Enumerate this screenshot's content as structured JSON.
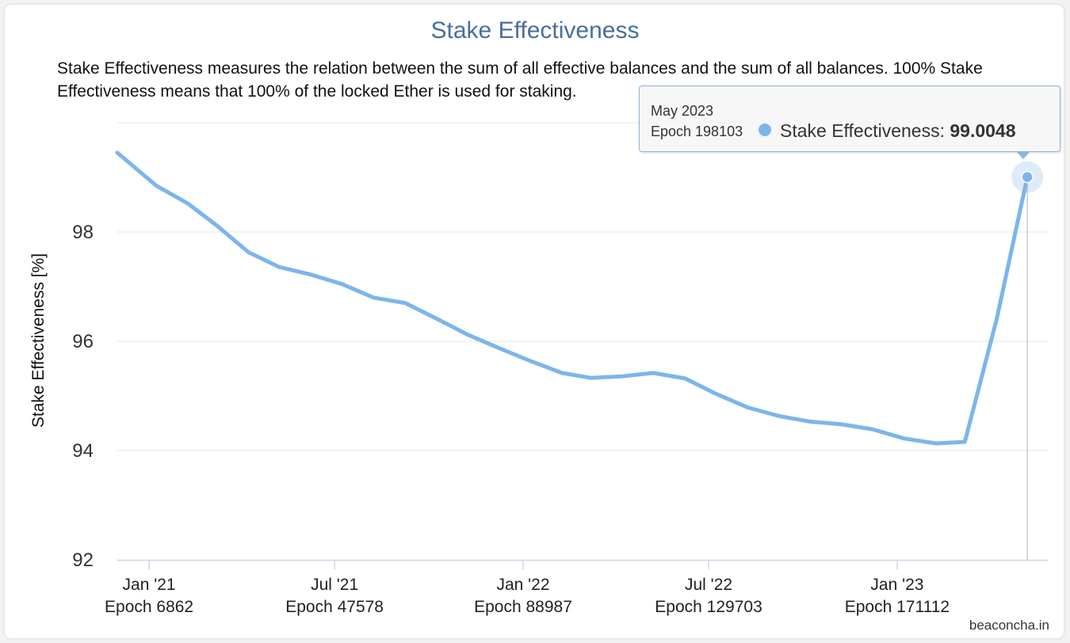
{
  "chart_data": {
    "type": "line",
    "title": "Stake Effectiveness",
    "subtitle": "Stake Effectiveness measures the relation between the sum of all effective balances and the sum of all balances. 100% Stake Effectiveness means that 100% of the locked Ether is used for staking.",
    "ylabel": "Stake Effectiveness [%]",
    "xlabel": "",
    "ylim": [
      92,
      100
    ],
    "yticks": [
      "92",
      "94",
      "96",
      "98"
    ],
    "xticks": [
      {
        "date": "2021-01-01",
        "label": "Jan '21",
        "epoch_label": "Epoch 6862"
      },
      {
        "date": "2021-07-01",
        "label": "Jul '21",
        "epoch_label": "Epoch 47578"
      },
      {
        "date": "2022-01-01",
        "label": "Jan '22",
        "epoch_label": "Epoch 88987"
      },
      {
        "date": "2022-07-01",
        "label": "Jul '22",
        "epoch_label": "Epoch 129703"
      },
      {
        "date": "2023-01-01",
        "label": "Jan '23",
        "epoch_label": "Epoch 171112"
      }
    ],
    "grid": true,
    "legend": "none",
    "series": [
      {
        "color": "#7cb5ec",
        "points": [
          {
            "date": "2020-12-01",
            "value": 99.45
          },
          {
            "date": "2021-01-08",
            "value": 98.85
          },
          {
            "date": "2021-02-08",
            "value": 98.52
          },
          {
            "date": "2021-03-08",
            "value": 98.12
          },
          {
            "date": "2021-04-08",
            "value": 97.63
          },
          {
            "date": "2021-05-08",
            "value": 97.36
          },
          {
            "date": "2021-06-08",
            "value": 97.22
          },
          {
            "date": "2021-07-08",
            "value": 97.05
          },
          {
            "date": "2021-08-08",
            "value": 96.8
          },
          {
            "date": "2021-09-08",
            "value": 96.7
          },
          {
            "date": "2021-10-08",
            "value": 96.42
          },
          {
            "date": "2021-11-08",
            "value": 96.12
          },
          {
            "date": "2021-12-08",
            "value": 95.88
          },
          {
            "date": "2022-01-08",
            "value": 95.64
          },
          {
            "date": "2022-02-08",
            "value": 95.42
          },
          {
            "date": "2022-03-08",
            "value": 95.33
          },
          {
            "date": "2022-04-08",
            "value": 95.36
          },
          {
            "date": "2022-05-08",
            "value": 95.42
          },
          {
            "date": "2022-06-08",
            "value": 95.32
          },
          {
            "date": "2022-07-08",
            "value": 95.04
          },
          {
            "date": "2022-08-08",
            "value": 94.79
          },
          {
            "date": "2022-09-08",
            "value": 94.63
          },
          {
            "date": "2022-10-08",
            "value": 94.53
          },
          {
            "date": "2022-11-08",
            "value": 94.48
          },
          {
            "date": "2022-12-08",
            "value": 94.39
          },
          {
            "date": "2023-01-08",
            "value": 94.22
          },
          {
            "date": "2023-02-08",
            "value": 94.13
          },
          {
            "date": "2023-03-08",
            "value": 94.16
          },
          {
            "date": "2023-04-08",
            "value": 96.4
          },
          {
            "date": "2023-05-08",
            "value": 99.0048
          }
        ]
      }
    ],
    "tooltip": {
      "date": "May 2023",
      "epoch": "Epoch 198103",
      "series_label": "Stake Effectiveness: ",
      "value": "99.0048",
      "point": {
        "date": "2023-05-08",
        "value": 99.0048
      }
    }
  },
  "credit": "beaconcha.in"
}
